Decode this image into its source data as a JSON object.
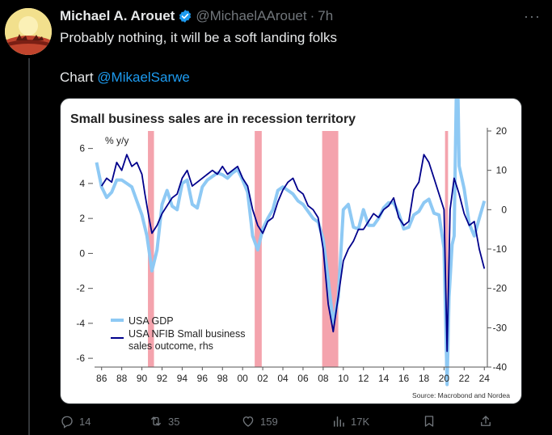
{
  "tweet": {
    "author_name": "Michael A. Arouet",
    "handle": "@MichaelAArouet",
    "separator": "·",
    "time": "7h",
    "text_line1": "Probably nothing, it will be a soft landing folks",
    "text_line2_prefix": "Chart ",
    "text_line2_mention": "@MikaelSarwe",
    "more_label": "···"
  },
  "actions": {
    "replies": "14",
    "reposts": "35",
    "likes": "159",
    "views": "17K"
  },
  "icons": [
    "verified-badge-icon",
    "more-icon",
    "reply-icon",
    "repost-icon",
    "like-icon",
    "views-icon",
    "bookmark-icon",
    "share-icon"
  ],
  "colors": {
    "accent": "#1d9bf0",
    "muted": "#71767b",
    "gdp_series": "#8ec9f4",
    "nfib_series": "#00008b",
    "recession_band": "#f4a3ad"
  },
  "chart_data": {
    "type": "line",
    "title": "Small business sales are in recession territory",
    "ylabel_left": "% y/y",
    "source": "Source: Macrobond and Nordea",
    "x_ticks": [
      "86",
      "88",
      "90",
      "92",
      "94",
      "96",
      "98",
      "00",
      "02",
      "04",
      "06",
      "08",
      "10",
      "12",
      "14",
      "16",
      "18",
      "20",
      "22",
      "24"
    ],
    "left_ticks": [
      "6",
      "4",
      "2",
      "0",
      "-2",
      "-4",
      "-6"
    ],
    "right_ticks": [
      "20",
      "10",
      "0",
      "-10",
      "-20",
      "-30",
      "-40"
    ],
    "ylim_left": [
      -6.5,
      7
    ],
    "ylim_right": [
      -40,
      20
    ],
    "xlim": [
      1985.3,
      2024.3
    ],
    "recessions": [
      [
        1990.6,
        1991.2
      ],
      [
        2001.2,
        2001.9
      ],
      [
        2007.9,
        2009.5
      ],
      [
        2020.1,
        2020.4
      ]
    ],
    "legend": [
      "USA GDP",
      "USA NFIB Small business sales outcome, rhs"
    ],
    "series": [
      {
        "name": "USA GDP",
        "axis": "left",
        "x": [
          1985.5,
          1986,
          1986.5,
          1987,
          1987.5,
          1988,
          1988.5,
          1989,
          1989.5,
          1990,
          1990.5,
          1991,
          1991.5,
          1992,
          1992.5,
          1993,
          1993.5,
          1994,
          1994.5,
          1995,
          1995.5,
          1996,
          1996.5,
          1997,
          1997.5,
          1998,
          1998.5,
          1999,
          1999.5,
          2000,
          2000.5,
          2001,
          2001.5,
          2002,
          2002.5,
          2003,
          2003.5,
          2004,
          2004.5,
          2005,
          2005.5,
          2006,
          2006.5,
          2007,
          2007.5,
          2008,
          2008.5,
          2009,
          2009.5,
          2010,
          2010.5,
          2011,
          2011.5,
          2012,
          2012.5,
          2013,
          2013.5,
          2014,
          2014.5,
          2015,
          2015.5,
          2016,
          2016.5,
          2017,
          2017.5,
          2018,
          2018.5,
          2019,
          2019.5,
          2020,
          2020.3,
          2020.5,
          2020.8,
          2021,
          2021.3,
          2021.5,
          2022,
          2022.5,
          2023,
          2023.5,
          2024
        ],
        "values": [
          5.2,
          3.8,
          3.2,
          3.5,
          4.2,
          4.2,
          4.0,
          3.8,
          3.0,
          2.2,
          1.0,
          -1.0,
          0.2,
          2.8,
          3.6,
          2.7,
          2.5,
          4.0,
          4.2,
          2.8,
          2.6,
          3.8,
          4.2,
          4.4,
          4.6,
          4.5,
          4.3,
          4.6,
          4.8,
          4.2,
          3.5,
          1.0,
          0.2,
          1.4,
          2.0,
          2.5,
          3.6,
          3.8,
          3.6,
          3.4,
          3.0,
          2.8,
          2.4,
          2.0,
          1.8,
          0.8,
          -1.5,
          -4.0,
          -2.5,
          2.5,
          2.8,
          1.5,
          1.4,
          2.5,
          1.6,
          1.6,
          2.0,
          2.6,
          2.9,
          2.9,
          2.3,
          1.4,
          1.5,
          2.2,
          2.4,
          2.9,
          3.1,
          2.3,
          2.2,
          0.3,
          -7.5,
          -2.5,
          0.5,
          1.0,
          12.2,
          5.0,
          3.7,
          1.7,
          1.0,
          2.0,
          3.0
        ]
      },
      {
        "name": "USA NFIB Small business sales outcome, rhs",
        "axis": "right",
        "x": [
          1986,
          1986.5,
          1987,
          1987.5,
          1988,
          1988.5,
          1989,
          1989.5,
          1990,
          1990.3,
          1990.7,
          1991,
          1991.5,
          1992,
          1992.5,
          1993,
          1993.5,
          1994,
          1994.5,
          1995,
          1995.5,
          1996,
          1996.5,
          1997,
          1997.5,
          1998,
          1998.5,
          1999,
          1999.5,
          2000,
          2000.5,
          2001,
          2001.5,
          2002,
          2002.5,
          2003,
          2003.5,
          2004,
          2004.5,
          2005,
          2005.5,
          2006,
          2006.5,
          2007,
          2007.5,
          2008,
          2008.5,
          2009,
          2009.5,
          2010,
          2010.5,
          2011,
          2011.5,
          2012,
          2012.5,
          2013,
          2013.5,
          2014,
          2014.5,
          2015,
          2015.5,
          2016,
          2016.5,
          2017,
          2017.5,
          2018,
          2018.5,
          2019,
          2019.5,
          2020,
          2020.3,
          2020.6,
          2021,
          2021.5,
          2022,
          2022.5,
          2023,
          2023.5,
          2024
        ],
        "values": [
          6,
          8,
          7,
          12,
          10,
          14,
          11,
          12,
          9,
          4,
          -2,
          -6,
          -4,
          -1,
          1,
          3,
          4,
          8,
          10,
          6,
          7,
          8,
          9,
          10,
          9,
          11,
          9,
          10,
          11,
          8,
          6,
          0,
          -4,
          -6,
          -3,
          -2,
          2,
          5,
          7,
          8,
          5,
          4,
          1,
          0,
          -2,
          -10,
          -24,
          -31,
          -22,
          -13,
          -10,
          -8,
          -5,
          -5,
          -3,
          -1,
          -2,
          0,
          1,
          3,
          -2,
          -4,
          -3,
          5,
          7,
          14,
          12,
          8,
          4,
          0,
          -36,
          0,
          8,
          4,
          -1,
          -4,
          -3,
          -10,
          -15
        ]
      }
    ]
  }
}
